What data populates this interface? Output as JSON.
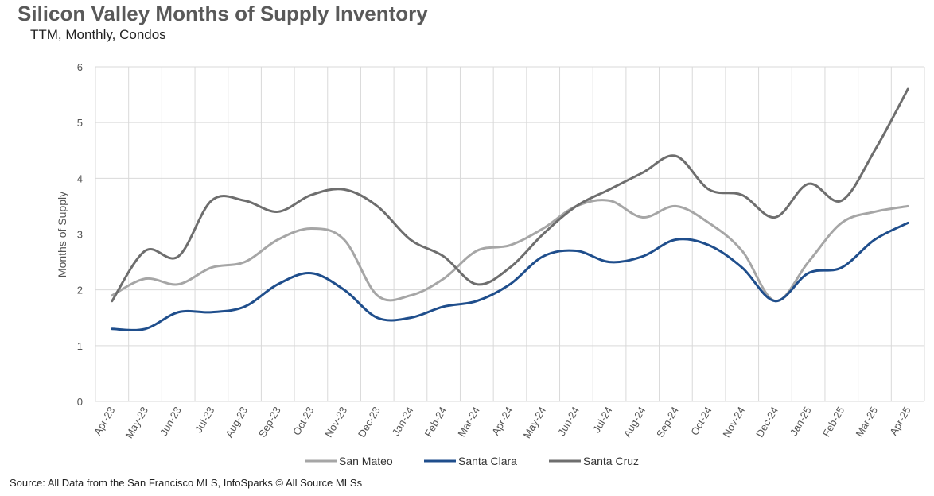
{
  "title": "Silicon Valley Months of Supply Inventory",
  "subtitle": "TTM, Monthly, Condos",
  "source": "Source: All Data from the San Francisco MLS, InfoSparks © All Source MLSs",
  "chart_data": {
    "type": "line",
    "ylabel": "Months of Supply",
    "ylim": [
      0,
      6
    ],
    "yticks": [
      "0",
      "1",
      "2",
      "3",
      "4",
      "5",
      "6"
    ],
    "grid": true,
    "legend_position": "bottom",
    "categories": [
      "Apr-23",
      "May-23",
      "Jun-23",
      "Jul-23",
      "Aug-23",
      "Sep-23",
      "Oct-23",
      "Nov-23",
      "Dec-23",
      "Jan-24",
      "Feb-24",
      "Mar-24",
      "Apr-24",
      "May-24",
      "Jun-24",
      "Jul-24",
      "Aug-24",
      "Sep-24",
      "Oct-24",
      "Nov-24",
      "Dec-24",
      "Jan-25",
      "Feb-25",
      "Mar-25",
      "Apr-25"
    ],
    "series": [
      {
        "name": "San Mateo",
        "color": "#a6a6a6",
        "values": [
          1.9,
          2.2,
          2.1,
          2.4,
          2.5,
          2.9,
          3.1,
          2.9,
          1.9,
          1.9,
          2.2,
          2.7,
          2.8,
          3.1,
          3.5,
          3.6,
          3.3,
          3.5,
          3.2,
          2.7,
          1.8,
          2.5,
          3.2,
          3.4,
          3.5
        ]
      },
      {
        "name": "Santa Clara",
        "color": "#1f4e8c",
        "values": [
          1.3,
          1.3,
          1.6,
          1.6,
          1.7,
          2.1,
          2.3,
          2.0,
          1.5,
          1.5,
          1.7,
          1.8,
          2.1,
          2.6,
          2.7,
          2.5,
          2.6,
          2.9,
          2.8,
          2.4,
          1.8,
          2.3,
          2.4,
          2.9,
          3.2
        ]
      },
      {
        "name": "Santa Cruz",
        "color": "#6e6e6e",
        "values": [
          1.8,
          2.7,
          2.6,
          3.6,
          3.6,
          3.4,
          3.7,
          3.8,
          3.5,
          2.9,
          2.6,
          2.1,
          2.4,
          3.0,
          3.5,
          3.8,
          4.1,
          4.4,
          3.8,
          3.7,
          3.3,
          3.9,
          3.6,
          4.5,
          5.6
        ]
      }
    ]
  }
}
